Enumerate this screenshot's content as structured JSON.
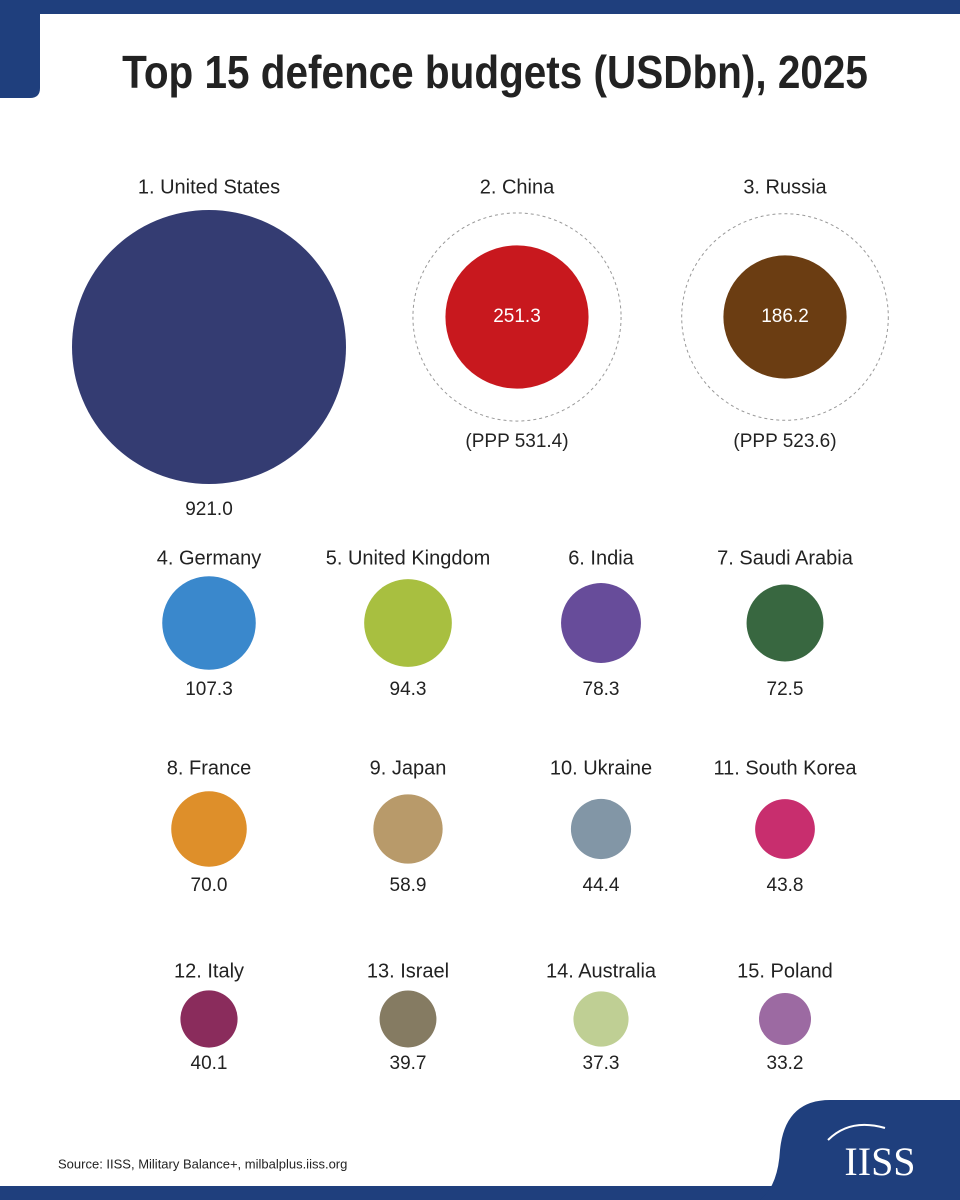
{
  "chart_data": {
    "type": "bubble",
    "title": "Top 15 defence budgets (USDbn), 2025",
    "categories": [
      "1. United States",
      "2. China",
      "3. Russia",
      "4. Germany",
      "5. United Kingdom",
      "6. India",
      "7. Saudi Arabia",
      "8. France",
      "9. Japan",
      "10. Ukraine",
      "11. South Korea",
      "12. Italy",
      "13. Israel",
      "14. Australia",
      "15. Poland"
    ],
    "values": [
      921.0,
      251.3,
      186.2,
      107.3,
      94.3,
      78.3,
      72.5,
      70.0,
      58.9,
      44.4,
      43.8,
      40.1,
      39.7,
      37.3,
      33.2
    ],
    "value_labels": [
      "921.0",
      "251.3",
      "186.2",
      "107.3",
      "94.3",
      "78.3",
      "72.5",
      "70.0",
      "58.9",
      "44.4",
      "43.8",
      "40.1",
      "39.7",
      "37.3",
      "33.2"
    ],
    "ppp": [
      null,
      531.4,
      523.6,
      null,
      null,
      null,
      null,
      null,
      null,
      null,
      null,
      null,
      null,
      null,
      null
    ],
    "ppp_labels": [
      null,
      "(PPP 531.4)",
      "(PPP 523.6)",
      null,
      null,
      null,
      null,
      null,
      null,
      null,
      null,
      null,
      null,
      null,
      null
    ],
    "colors": [
      "#343c72",
      "#c8181e",
      "#6b3d12",
      "#3a88cc",
      "#a8bf40",
      "#674c9a",
      "#386740",
      "#de8f2a",
      "#b89a6a",
      "#8296a6",
      "#c82e6e",
      "#8a2c5c",
      "#857b62",
      "#bfcf94",
      "#9c6aa2"
    ],
    "source": "Source: IISS, Military Balance+, milbalplus.iiss.org"
  },
  "logo": "IISS"
}
